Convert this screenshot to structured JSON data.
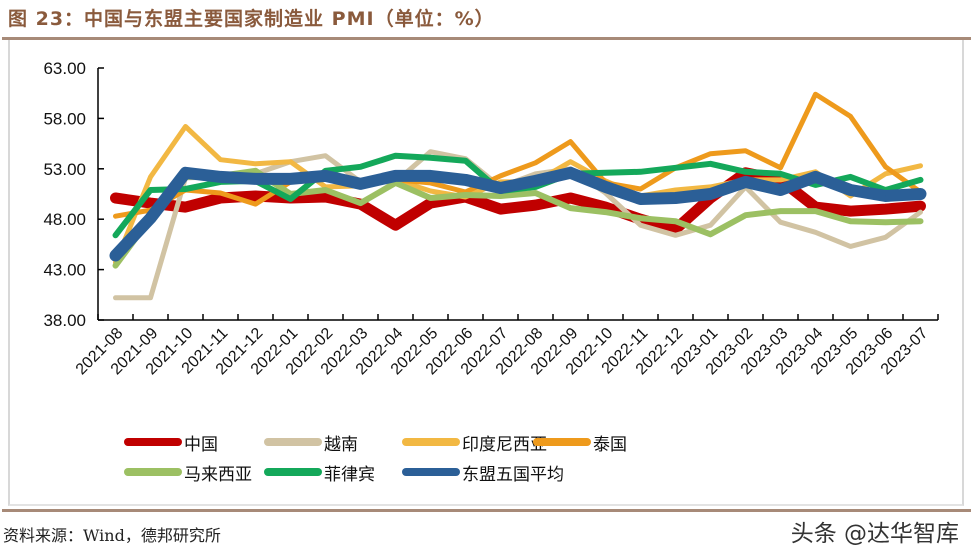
{
  "header": {
    "title": "图 23：中国与东盟主要国家制造业 PMI（单位：%）"
  },
  "footer": {
    "source": "资料来源：Wind，德邦研究所",
    "watermark": "头条 @达华智库"
  },
  "chart_data": {
    "type": "line",
    "title": "图 23：中国与东盟主要国家制造业 PMI（单位：%）",
    "xlabel": "",
    "ylabel": "",
    "ylim": [
      38,
      63
    ],
    "yticks": [
      "63.00",
      "58.00",
      "53.00",
      "48.00",
      "43.00",
      "38.00"
    ],
    "ytick_values": [
      63,
      58,
      53,
      48,
      43,
      38
    ],
    "grid": false,
    "legend_position": "bottom",
    "categories": [
      "2021-08",
      "2021-09",
      "2021-10",
      "2021-11",
      "2021-12",
      "2022-01",
      "2022-02",
      "2022-03",
      "2022-04",
      "2022-05",
      "2022-06",
      "2022-07",
      "2022-08",
      "2022-09",
      "2022-10",
      "2022-11",
      "2022-12",
      "2023-01",
      "2023-02",
      "2023-03",
      "2023-04",
      "2023-05",
      "2023-06",
      "2023-07"
    ],
    "series": [
      {
        "name": "中国",
        "color": "#c00000",
        "width": 11,
        "values": [
          50.1,
          49.6,
          49.2,
          50.1,
          50.3,
          50.1,
          50.2,
          49.5,
          47.4,
          49.6,
          50.2,
          49.0,
          49.4,
          50.1,
          49.2,
          48.0,
          47.0,
          50.1,
          52.6,
          51.9,
          49.2,
          48.8,
          49.0,
          49.3
        ]
      },
      {
        "name": "越南",
        "color": "#d1c3a3",
        "width": 5,
        "values": [
          40.2,
          40.2,
          52.1,
          52.2,
          52.5,
          53.7,
          54.3,
          51.7,
          51.7,
          54.7,
          54.0,
          51.2,
          52.5,
          53.0,
          50.6,
          47.4,
          46.4,
          47.4,
          51.2,
          47.7,
          46.7,
          45.3,
          46.2,
          48.7
        ]
      },
      {
        "name": "印度尼西亚",
        "color": "#f2b843",
        "width": 5,
        "values": [
          43.7,
          52.2,
          57.2,
          53.9,
          53.5,
          53.7,
          51.2,
          51.3,
          51.9,
          50.8,
          50.2,
          51.7,
          51.7,
          53.7,
          51.8,
          50.3,
          50.9,
          51.2,
          51.9,
          51.9,
          52.7,
          50.3,
          52.5,
          53.3
        ]
      },
      {
        "name": "泰国",
        "color": "#ee9a1c",
        "width": 5,
        "values": [
          48.3,
          48.9,
          50.9,
          50.6,
          49.5,
          51.7,
          52.5,
          51.5,
          51.9,
          51.6,
          50.7,
          52.3,
          53.6,
          55.7,
          51.6,
          51.0,
          53.1,
          54.5,
          54.8,
          53.1,
          60.4,
          58.2,
          53.2,
          50.7
        ]
      },
      {
        "name": "马来西亚",
        "color": "#9cc063",
        "width": 6,
        "values": [
          43.4,
          48.1,
          52.2,
          52.3,
          52.8,
          50.5,
          50.9,
          49.6,
          51.6,
          50.1,
          50.4,
          50.3,
          50.6,
          49.1,
          48.7,
          48.1,
          47.8,
          46.5,
          48.4,
          48.8,
          48.8,
          47.8,
          47.7,
          47.8
        ]
      },
      {
        "name": "菲律宾",
        "color": "#14a85a",
        "width": 6,
        "values": [
          46.4,
          50.9,
          51.0,
          51.7,
          51.8,
          50.0,
          52.8,
          53.2,
          54.3,
          54.1,
          53.8,
          50.8,
          51.2,
          52.5,
          52.6,
          52.7,
          53.1,
          53.5,
          52.7,
          52.5,
          51.4,
          52.2,
          50.9,
          51.9
        ]
      },
      {
        "name": "东盟五国平均",
        "color": "#2b5f97",
        "width": 12,
        "values": [
          44.4,
          48.1,
          52.6,
          52.2,
          52.0,
          52.0,
          52.3,
          51.5,
          52.3,
          52.3,
          51.9,
          51.1,
          51.8,
          52.6,
          51.2,
          50.0,
          50.1,
          50.5,
          51.7,
          50.9,
          52.2,
          50.9,
          50.3,
          50.5
        ]
      }
    ]
  }
}
